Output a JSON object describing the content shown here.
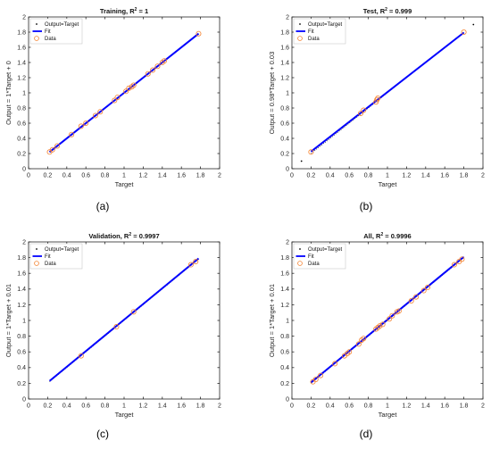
{
  "chart_data": [
    {
      "type": "scatter",
      "panel_label": "(a)",
      "title": "Training, R",
      "title_sup": "2",
      "title_suffix": " = 1",
      "xlabel": "Target",
      "ylabel": "Output = 1*Target + 0",
      "xlim": [
        0,
        2
      ],
      "ylim": [
        0,
        2
      ],
      "xticks": [
        0,
        0.2,
        0.4,
        0.6,
        0.8,
        1,
        1.2,
        1.4,
        1.6,
        1.8,
        2
      ],
      "yticks": [
        0,
        0.2,
        0.4,
        0.6,
        0.8,
        1,
        1.2,
        1.4,
        1.6,
        1.8,
        2
      ],
      "legend": {
        "position": "top-left",
        "entries": [
          "Output=Target",
          "Fit",
          "Data"
        ]
      },
      "fit": {
        "slope": 1,
        "intercept": 0,
        "x_range": [
          0.22,
          1.78
        ]
      },
      "identity_range": [
        0.22,
        1.78
      ],
      "points": [
        [
          0.22,
          0.22
        ],
        [
          0.25,
          0.25
        ],
        [
          0.3,
          0.3
        ],
        [
          0.45,
          0.45
        ],
        [
          0.55,
          0.56
        ],
        [
          0.6,
          0.6
        ],
        [
          0.7,
          0.7
        ],
        [
          0.75,
          0.75
        ],
        [
          0.9,
          0.9
        ],
        [
          0.93,
          0.94
        ],
        [
          1.02,
          1.02
        ],
        [
          1.05,
          1.06
        ],
        [
          1.08,
          1.08
        ],
        [
          1.1,
          1.1
        ],
        [
          1.25,
          1.25
        ],
        [
          1.3,
          1.3
        ],
        [
          1.35,
          1.35
        ],
        [
          1.4,
          1.4
        ],
        [
          1.42,
          1.42
        ],
        [
          1.78,
          1.78
        ]
      ],
      "points_off_line": []
    },
    {
      "type": "scatter",
      "panel_label": "(b)",
      "title": "Test, R",
      "title_sup": "2",
      "title_suffix": " = 0.999",
      "xlabel": "Target",
      "ylabel": "Output = 0.98*Target + 0.03",
      "xlim": [
        0,
        2
      ],
      "ylim": [
        0,
        2
      ],
      "xticks": [
        0,
        0.2,
        0.4,
        0.6,
        0.8,
        1,
        1.2,
        1.4,
        1.6,
        1.8,
        2
      ],
      "yticks": [
        0,
        0.2,
        0.4,
        0.6,
        0.8,
        1,
        1.2,
        1.4,
        1.6,
        1.8,
        2
      ],
      "legend": {
        "position": "top-left",
        "entries": [
          "Output=Target",
          "Fit",
          "Data"
        ]
      },
      "fit": {
        "slope": 0.98,
        "intercept": 0.03,
        "x_range": [
          0.2,
          1.8
        ]
      },
      "identity_range": [
        0.2,
        1.8
      ],
      "points": [
        [
          0.2,
          0.22
        ],
        [
          0.72,
          0.73
        ],
        [
          0.75,
          0.77
        ],
        [
          0.88,
          0.88
        ],
        [
          0.89,
          0.91
        ],
        [
          0.9,
          0.93
        ],
        [
          1.8,
          1.8
        ]
      ],
      "points_off_line": [
        [
          0.1,
          0.1
        ],
        [
          1.9,
          1.9
        ]
      ]
    },
    {
      "type": "scatter",
      "panel_label": "(c)",
      "title": "Validation, R",
      "title_sup": "2",
      "title_suffix": " = 0.9997",
      "xlabel": "Target",
      "ylabel": "Output = 1*Target + 0.01",
      "xlim": [
        0,
        2
      ],
      "ylim": [
        0,
        2
      ],
      "xticks": [
        0,
        0.2,
        0.4,
        0.6,
        0.8,
        1,
        1.2,
        1.4,
        1.6,
        1.8,
        2
      ],
      "yticks": [
        0,
        0.2,
        0.4,
        0.6,
        0.8,
        1,
        1.2,
        1.4,
        1.6,
        1.8,
        2
      ],
      "legend": {
        "position": "top-left",
        "entries": [
          "Output=Target",
          "Fit",
          "Data"
        ]
      },
      "fit": {
        "slope": 1,
        "intercept": 0.01,
        "x_range": [
          0.22,
          1.78
        ]
      },
      "identity_range": [
        0.22,
        1.78
      ],
      "points": [
        [
          0.55,
          0.55
        ],
        [
          0.92,
          0.92
        ],
        [
          1.1,
          1.11
        ],
        [
          1.7,
          1.71
        ],
        [
          1.75,
          1.75
        ]
      ],
      "points_off_line": []
    },
    {
      "type": "scatter",
      "panel_label": "(d)",
      "title": "All, R",
      "title_sup": "2",
      "title_suffix": " = 0.9996",
      "xlabel": "Target",
      "ylabel": "Output = 1*Target + 0.01",
      "xlim": [
        0,
        2
      ],
      "ylim": [
        0,
        2
      ],
      "xticks": [
        0,
        0.2,
        0.4,
        0.6,
        0.8,
        1,
        1.2,
        1.4,
        1.6,
        1.8,
        2
      ],
      "yticks": [
        0,
        0.2,
        0.4,
        0.6,
        0.8,
        1,
        1.2,
        1.4,
        1.6,
        1.8,
        2
      ],
      "legend": {
        "position": "top-left",
        "entries": [
          "Output=Target",
          "Fit",
          "Data"
        ]
      },
      "fit": {
        "slope": 1,
        "intercept": 0.01,
        "x_range": [
          0.2,
          1.8
        ]
      },
      "identity_range": [
        0.2,
        1.8
      ],
      "points": [
        [
          0.22,
          0.22
        ],
        [
          0.25,
          0.25
        ],
        [
          0.3,
          0.3
        ],
        [
          0.45,
          0.45
        ],
        [
          0.55,
          0.55
        ],
        [
          0.58,
          0.58
        ],
        [
          0.6,
          0.6
        ],
        [
          0.7,
          0.7
        ],
        [
          0.73,
          0.75
        ],
        [
          0.75,
          0.77
        ],
        [
          0.88,
          0.89
        ],
        [
          0.9,
          0.91
        ],
        [
          0.92,
          0.93
        ],
        [
          0.95,
          0.95
        ],
        [
          1.02,
          1.02
        ],
        [
          1.05,
          1.06
        ],
        [
          1.1,
          1.11
        ],
        [
          1.12,
          1.12
        ],
        [
          1.25,
          1.25
        ],
        [
          1.3,
          1.3
        ],
        [
          1.38,
          1.38
        ],
        [
          1.42,
          1.42
        ],
        [
          1.7,
          1.71
        ],
        [
          1.75,
          1.75
        ],
        [
          1.78,
          1.78
        ]
      ],
      "points_off_line": []
    }
  ],
  "colors": {
    "axis": "#262626",
    "fit": "#0000ff",
    "identity": "#333333",
    "data_marker": "#f4812f",
    "legend_dot": "#000000"
  }
}
